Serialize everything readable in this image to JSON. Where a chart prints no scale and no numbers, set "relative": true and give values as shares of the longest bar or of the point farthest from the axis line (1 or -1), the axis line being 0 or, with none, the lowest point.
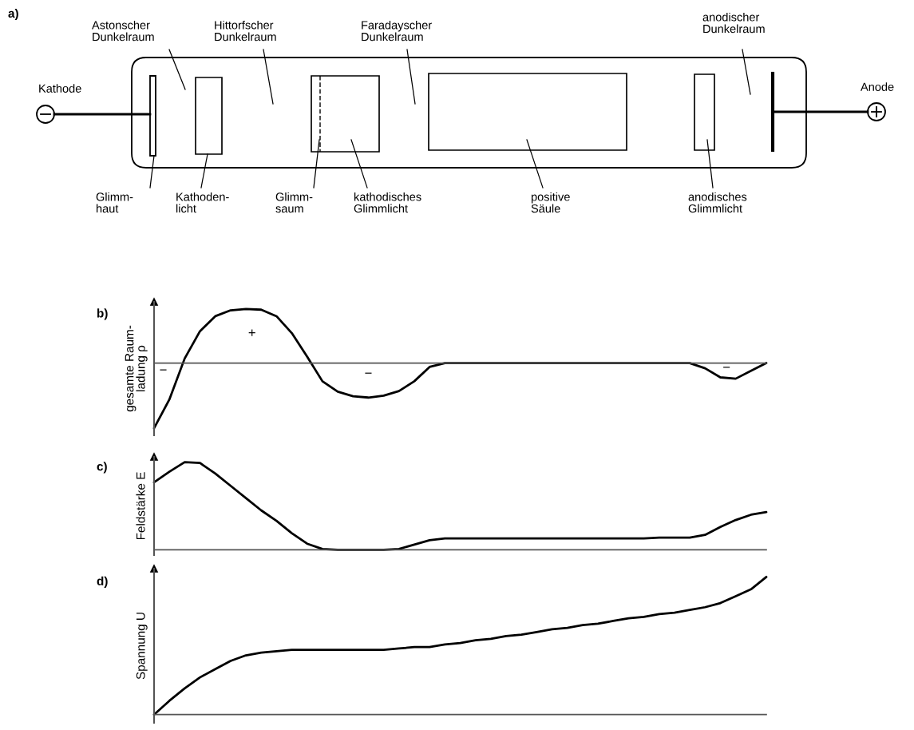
{
  "chart_data": [
    {
      "type": "other",
      "title": "a)",
      "annotations": [
        "Kathode",
        "Anode",
        "Astonscher\nDunkelraum",
        "Hittorfscher\nDunkelraum",
        "Faradayscher\nDunkelraum",
        "anodischer\nDunkelraum",
        "Glimm-\nhaut",
        "Kathoden-\nlicht",
        "Glimm-\nsaum",
        "kathodisches\nGlimmlicht",
        "positive\nSäule",
        "anodisches\nGlimmlicht"
      ]
    },
    {
      "type": "line",
      "title": "b)",
      "ylabel": "gesamte Raum-\nladung ρ",
      "relative": true,
      "categories": [
        null,
        null,
        null,
        null,
        null,
        null,
        null,
        null,
        null,
        null,
        null,
        null,
        null,
        null,
        null,
        null,
        null,
        null,
        null,
        null,
        null,
        null,
        null,
        null,
        null,
        null,
        null,
        null,
        null,
        null,
        null,
        null,
        null,
        null,
        null,
        null,
        null,
        null,
        null,
        null,
        null
      ],
      "annotations": [
        "−",
        "+",
        "−",
        "−"
      ],
      "series": [
        {
          "color": "#000000",
          "values": [
            -1,
            -0.56,
            0.07,
            0.49,
            0.72,
            0.81,
            0.83,
            0.82,
            0.72,
            0.46,
            0.1,
            -0.28,
            -0.44,
            -0.51,
            -0.53,
            -0.5,
            -0.43,
            -0.28,
            -0.06,
            0,
            0,
            0,
            0,
            0,
            0,
            0,
            0,
            0,
            0,
            0,
            0,
            0,
            0,
            0,
            0,
            0,
            -0.08,
            -0.22,
            -0.24,
            -0.12,
            0
          ]
        }
      ]
    },
    {
      "type": "line",
      "title": "c)",
      "ylabel": "Feldstärke E",
      "relative": true,
      "categories": [
        null,
        null,
        null,
        null,
        null,
        null,
        null,
        null,
        null,
        null,
        null,
        null,
        null,
        null,
        null,
        null,
        null,
        null,
        null,
        null,
        null,
        null,
        null,
        null,
        null,
        null,
        null,
        null,
        null,
        null,
        null,
        null,
        null,
        null,
        null,
        null,
        null,
        null,
        null,
        null,
        null
      ],
      "series": [
        {
          "color": "#000000",
          "values": [
            0.77,
            0.89,
            1,
            0.99,
            0.87,
            0.73,
            0.59,
            0.45,
            0.33,
            0.19,
            0.07,
            0.01,
            0,
            0,
            0,
            0,
            0.01,
            0.06,
            0.11,
            0.13,
            0.13,
            0.13,
            0.13,
            0.13,
            0.13,
            0.13,
            0.13,
            0.13,
            0.13,
            0.13,
            0.13,
            0.13,
            0.13,
            0.14,
            0.14,
            0.14,
            0.17,
            0.26,
            0.34,
            0.4,
            0.43
          ]
        }
      ]
    },
    {
      "type": "line",
      "title": "d)",
      "ylabel": "Spannung U",
      "relative": true,
      "categories": [
        null,
        null,
        null,
        null,
        null,
        null,
        null,
        null,
        null,
        null,
        null,
        null,
        null,
        null,
        null,
        null,
        null,
        null,
        null,
        null,
        null,
        null,
        null,
        null,
        null,
        null,
        null,
        null,
        null,
        null,
        null,
        null,
        null,
        null,
        null,
        null,
        null,
        null,
        null,
        null,
        null
      ],
      "series": [
        {
          "color": "#000000",
          "values": [
            0,
            0.1,
            0.19,
            0.27,
            0.33,
            0.39,
            0.43,
            0.45,
            0.46,
            0.47,
            0.47,
            0.47,
            0.47,
            0.47,
            0.47,
            0.47,
            0.48,
            0.49,
            0.49,
            0.51,
            0.52,
            0.54,
            0.55,
            0.57,
            0.58,
            0.6,
            0.62,
            0.63,
            0.65,
            0.66,
            0.68,
            0.7,
            0.71,
            0.73,
            0.74,
            0.76,
            0.78,
            0.81,
            0.86,
            0.91,
            1
          ]
        }
      ]
    }
  ]
}
